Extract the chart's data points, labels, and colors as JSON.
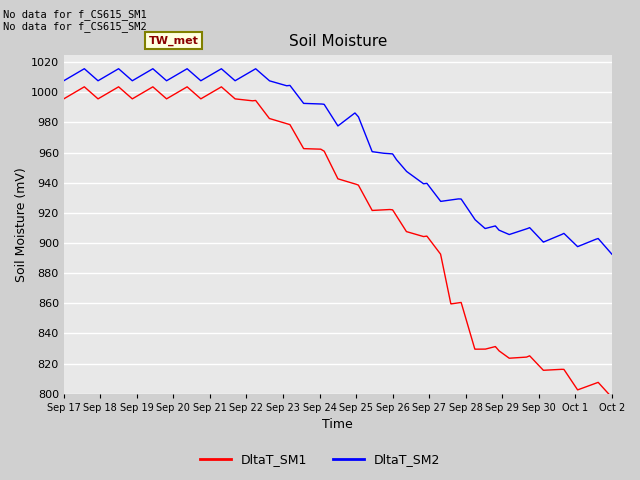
{
  "title": "Soil Moisture",
  "ylabel": "Soil Moisture (mV)",
  "xlabel": "Time",
  "ylim": [
    800,
    1025
  ],
  "yticks": [
    800,
    820,
    840,
    860,
    880,
    900,
    920,
    940,
    960,
    980,
    1000,
    1020
  ],
  "xtick_labels": [
    "Sep 17",
    "Sep 18",
    "Sep 19",
    "Sep 20",
    "Sep 21",
    "Sep 22",
    "Sep 23",
    "Sep 24",
    "Sep 25",
    "Sep 26",
    "Sep 27",
    "Sep 28",
    "Sep 29",
    "Sep 30",
    "Oct 1",
    "Oct 2"
  ],
  "annotations": [
    "No data for f_CS615_SM1",
    "No data for f_CS615_SM2"
  ],
  "legend_label": "TW_met",
  "line1_label": "DltaT_SM1",
  "line2_label": "DltaT_SM2",
  "line1_color": "red",
  "line2_color": "blue",
  "fig_bg_color": "#d0d0d0",
  "plot_bg_color": "#e8e8e8",
  "grid_color": "white"
}
